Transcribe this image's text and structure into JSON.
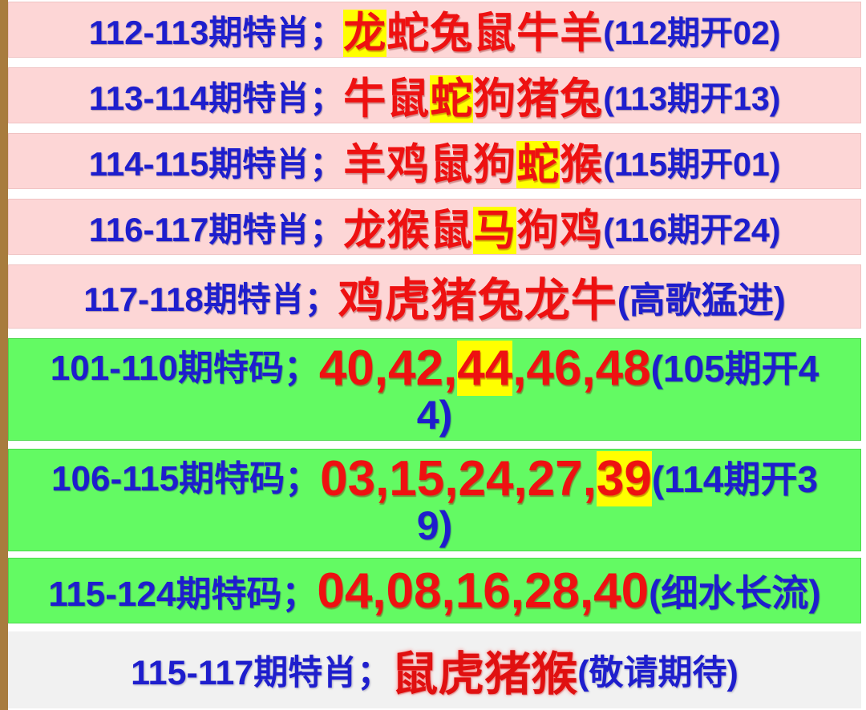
{
  "palette": {
    "left_bar": "#a87c3e",
    "pink_row_bg": "#fdd6d6",
    "green_row_bg": "#63fa63",
    "footer_row_bg": "#f1f1f1",
    "highlight_yellow": "#ffff00",
    "blue_text": "#1e1ecd",
    "red_text": "#ee1111"
  },
  "rows": [
    {
      "label": "112-113期特肖；",
      "red_pre": "",
      "hl": "龙",
      "red_post": "蛇兔鼠牛羊",
      "note": "(112期开02)",
      "line2": ""
    },
    {
      "label": "113-114期特肖；",
      "red_pre": "牛鼠",
      "hl": "蛇",
      "red_post": "狗猪兔",
      "note": "(113期开13)",
      "line2": ""
    },
    {
      "label": "114-115期特肖；",
      "red_pre": "羊鸡鼠狗",
      "hl": "蛇",
      "red_post": "猴",
      "note": "(115期开01)",
      "line2": ""
    },
    {
      "label": "116-117期特肖；",
      "red_pre": "龙猴鼠",
      "hl": "马",
      "red_post": "狗鸡",
      "note": "(116期开24)",
      "line2": ""
    },
    {
      "label": "117-118期特肖；",
      "red_pre": "鸡虎猪兔龙牛",
      "hl": "",
      "red_post": "",
      "note": "(高歌猛进)",
      "line2": ""
    },
    {
      "label": "101-110期特码；",
      "red_pre": "40,42,",
      "hl": "44",
      "red_post": ",46,48",
      "note": "(105期开4",
      "line2": "4)"
    },
    {
      "label": "106-115期特码；",
      "red_pre": "03,15,24,27,",
      "hl": "39",
      "red_post": "",
      "note": "(114期开3",
      "line2": "9)"
    },
    {
      "label": "115-124期特码；",
      "red_pre": "04,08,16,28,40",
      "hl": "",
      "red_post": "",
      "note": "(细水长流)",
      "line2": ""
    },
    {
      "label": "115-117期特肖；",
      "red_pre": "鼠虎猪猴",
      "hl": "",
      "red_post": "",
      "note": "(敬请期待)",
      "line2": ""
    }
  ]
}
